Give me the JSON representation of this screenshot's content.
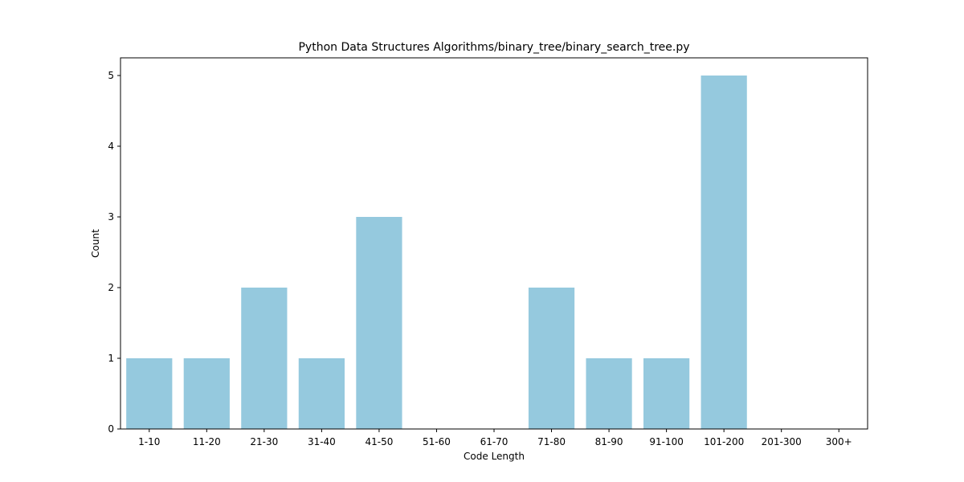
{
  "chart_data": {
    "type": "bar",
    "title": "Python Data Structures Algorithms/binary_tree/binary_search_tree.py",
    "xlabel": "Code Length",
    "ylabel": "Count",
    "categories": [
      "1-10",
      "11-20",
      "21-30",
      "31-40",
      "41-50",
      "51-60",
      "61-70",
      "71-80",
      "81-90",
      "91-100",
      "101-200",
      "201-300",
      "300+"
    ],
    "values": [
      1,
      1,
      2,
      1,
      3,
      0,
      0,
      2,
      1,
      1,
      5,
      0,
      0
    ],
    "ylim": [
      0,
      5.25
    ],
    "yticks": [
      0,
      1,
      2,
      3,
      4,
      5
    ],
    "grid": false,
    "bar_color": "#95c9de"
  }
}
